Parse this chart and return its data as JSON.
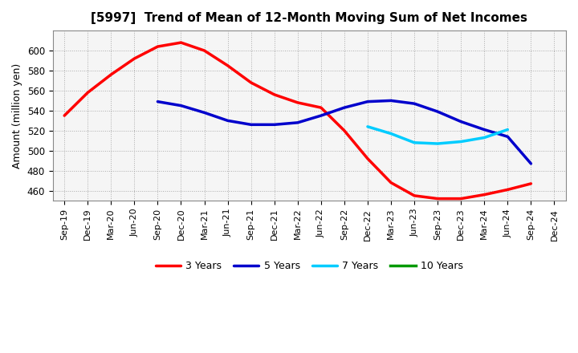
{
  "title": "[5997]  Trend of Mean of 12-Month Moving Sum of Net Incomes",
  "ylabel": "Amount (million yen)",
  "x_labels": [
    "Sep-19",
    "Dec-19",
    "Mar-20",
    "Jun-20",
    "Sep-20",
    "Dec-20",
    "Mar-21",
    "Jun-21",
    "Sep-21",
    "Dec-21",
    "Mar-22",
    "Jun-22",
    "Sep-22",
    "Dec-22",
    "Mar-23",
    "Jun-23",
    "Sep-23",
    "Dec-23",
    "Mar-24",
    "Jun-24",
    "Sep-24",
    "Dec-24"
  ],
  "ylim": [
    450,
    620
  ],
  "yticks": [
    460,
    480,
    500,
    520,
    540,
    560,
    580,
    600
  ],
  "background_color": "#f5f5f5",
  "series": [
    {
      "name": "3 Years",
      "color": "#ff0000",
      "data": [
        [
          0,
          535
        ],
        [
          1,
          558
        ],
        [
          2,
          576
        ],
        [
          3,
          592
        ],
        [
          4,
          604
        ],
        [
          5,
          608
        ],
        [
          6,
          600
        ],
        [
          7,
          585
        ],
        [
          8,
          568
        ],
        [
          9,
          556
        ],
        [
          10,
          548
        ],
        [
          11,
          543
        ],
        [
          12,
          520
        ],
        [
          13,
          492
        ],
        [
          14,
          468
        ],
        [
          15,
          455
        ],
        [
          16,
          452
        ],
        [
          17,
          452
        ],
        [
          18,
          456
        ],
        [
          19,
          461
        ],
        [
          20,
          467
        ]
      ]
    },
    {
      "name": "5 Years",
      "color": "#0000cc",
      "data": [
        [
          4,
          549
        ],
        [
          5,
          545
        ],
        [
          6,
          538
        ],
        [
          7,
          530
        ],
        [
          8,
          526
        ],
        [
          9,
          526
        ],
        [
          10,
          528
        ],
        [
          11,
          535
        ],
        [
          12,
          543
        ],
        [
          13,
          549
        ],
        [
          14,
          550
        ],
        [
          15,
          547
        ],
        [
          16,
          539
        ],
        [
          17,
          529
        ],
        [
          18,
          521
        ],
        [
          19,
          514
        ],
        [
          20,
          487
        ]
      ]
    },
    {
      "name": "7 Years",
      "color": "#00ccff",
      "data": [
        [
          13,
          524
        ],
        [
          14,
          517
        ],
        [
          15,
          508
        ],
        [
          16,
          507
        ],
        [
          17,
          509
        ],
        [
          18,
          513
        ],
        [
          19,
          521
        ]
      ]
    },
    {
      "name": "10 Years",
      "color": "#009900",
      "data": []
    }
  ]
}
